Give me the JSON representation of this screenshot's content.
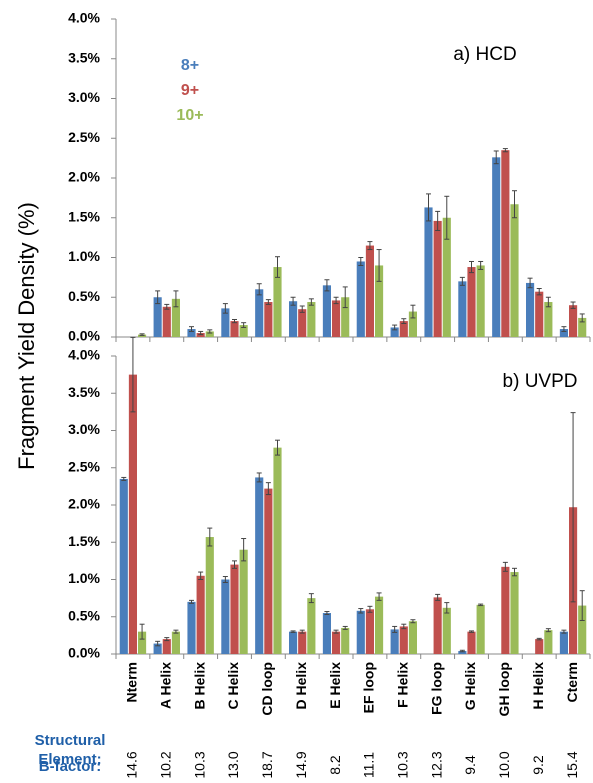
{
  "y_label": "Fragment Yield Density (%)",
  "structural_element_label": [
    "Structural",
    "Element:"
  ],
  "b_factor_label": "B-factor:",
  "b_factors": [
    "14.6",
    "10.2",
    "10.3",
    "13.0",
    "18.7",
    "14.9",
    "8.2",
    "11.1",
    "10.3",
    "12.3",
    "9.4",
    "10.0",
    "9.2",
    "15.4"
  ],
  "chart_data": [
    {
      "type": "bar",
      "annotation": "a) HCD",
      "ylim": [
        0,
        4
      ],
      "yticks": [
        {
          "value": 0,
          "label": "0.0%"
        },
        {
          "value": 0.5,
          "label": "0.5%"
        },
        {
          "value": 1,
          "label": "1.0%"
        },
        {
          "value": 1.5,
          "label": "1.5%"
        },
        {
          "value": 2,
          "label": "2.0%"
        },
        {
          "value": 2.5,
          "label": "2.5%"
        },
        {
          "value": 3,
          "label": "3.0%"
        },
        {
          "value": 3.5,
          "label": "3.5%"
        },
        {
          "value": 4,
          "label": "4.0%"
        }
      ],
      "series": [
        {
          "name": "8+",
          "color": "#4a7ebb",
          "values": [
            null,
            0.5,
            0.1,
            0.36,
            0.6,
            0.45,
            0.65,
            0.95,
            0.12,
            1.63,
            0.7,
            2.26,
            0.68,
            0.1
          ],
          "errors": [
            null,
            0.08,
            0.03,
            0.06,
            0.07,
            0.05,
            0.07,
            0.05,
            0.03,
            0.17,
            0.05,
            0.08,
            0.06,
            0.03
          ]
        },
        {
          "name": "9+",
          "color": "#c0504d",
          "values": [
            null,
            0.38,
            0.05,
            0.2,
            0.44,
            0.35,
            0.46,
            1.15,
            0.2,
            1.46,
            0.88,
            2.35,
            0.57,
            0.4
          ],
          "errors": [
            null,
            0.03,
            0.02,
            0.02,
            0.03,
            0.04,
            0.04,
            0.05,
            0.03,
            0.12,
            0.07,
            0.02,
            0.04,
            0.04
          ]
        },
        {
          "name": "10+",
          "color": "#9bbb59",
          "values": [
            0.03,
            0.48,
            0.07,
            0.15,
            0.88,
            0.44,
            0.5,
            0.9,
            0.32,
            1.5,
            0.9,
            1.67,
            0.44,
            0.24
          ],
          "errors": [
            0.01,
            0.1,
            0.02,
            0.03,
            0.13,
            0.04,
            0.13,
            0.2,
            0.08,
            0.27,
            0.05,
            0.17,
            0.06,
            0.05
          ]
        }
      ]
    },
    {
      "type": "bar",
      "annotation": "b) UVPD",
      "categories": [
        "Nterm",
        "A Helix",
        "B Helix",
        "C Helix",
        "CD loop",
        "D Helix",
        "E Helix",
        "EF loop",
        "F Helix",
        "FG loop",
        "G Helix",
        "GH loop",
        "H Helix",
        "Cterm"
      ],
      "ylim": [
        0,
        4
      ],
      "yticks": [
        {
          "value": 0,
          "label": "0.0%"
        },
        {
          "value": 0.5,
          "label": "0.5%"
        },
        {
          "value": 1,
          "label": "1.0%"
        },
        {
          "value": 1.5,
          "label": "1.5%"
        },
        {
          "value": 2,
          "label": "2.0%"
        },
        {
          "value": 2.5,
          "label": "2.5%"
        },
        {
          "value": 3,
          "label": "3.0%"
        },
        {
          "value": 3.5,
          "label": "3.5%"
        },
        {
          "value": 4,
          "label": "4.0%"
        }
      ],
      "series": [
        {
          "name": "8+",
          "color": "#4a7ebb",
          "values": [
            2.35,
            0.14,
            0.7,
            1.0,
            2.37,
            0.3,
            0.55,
            0.58,
            0.33,
            null,
            0.04,
            null,
            null,
            0.3
          ],
          "errors": [
            0.02,
            0.03,
            0.02,
            0.04,
            0.06,
            0.01,
            0.02,
            0.03,
            0.04,
            null,
            0.01,
            null,
            null,
            0.02
          ]
        },
        {
          "name": "9+",
          "color": "#c0504d",
          "values": [
            3.75,
            0.2,
            1.05,
            1.2,
            2.22,
            0.3,
            0.3,
            0.6,
            0.37,
            0.76,
            0.3,
            1.17,
            0.2,
            1.97
          ],
          "errors": [
            0.5,
            0.02,
            0.05,
            0.05,
            0.08,
            0.02,
            0.02,
            0.04,
            0.03,
            0.04,
            0.01,
            0.06,
            0.01,
            1.27
          ]
        },
        {
          "name": "10+",
          "color": "#9bbb59",
          "values": [
            0.3,
            0.3,
            1.57,
            1.4,
            2.77,
            0.75,
            0.35,
            0.77,
            0.44,
            0.62,
            0.66,
            1.1,
            0.32,
            0.65
          ],
          "errors": [
            0.1,
            0.02,
            0.12,
            0.15,
            0.1,
            0.06,
            0.02,
            0.05,
            0.02,
            0.07,
            0.01,
            0.05,
            0.02,
            0.2
          ]
        }
      ]
    }
  ]
}
